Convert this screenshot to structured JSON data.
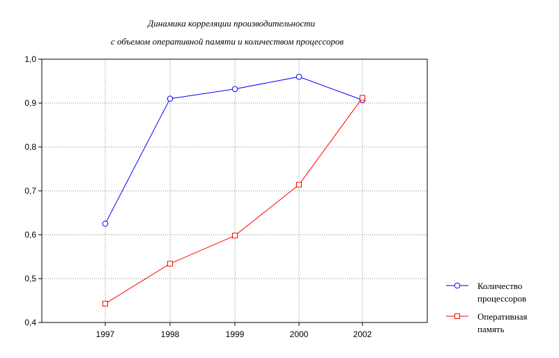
{
  "chart_data": {
    "type": "line",
    "title_lines": [
      "Динамика корреляции производительности",
      "с объемом оперативной памяти и количеством процессоров"
    ],
    "categories": [
      "1997",
      "1998",
      "1999",
      "2000",
      "2002"
    ],
    "y_ticks": [
      "0,4",
      "0,5",
      "0,6",
      "0,7",
      "0,8",
      "0,9",
      "1,0"
    ],
    "ylim": [
      0.4,
      1.0
    ],
    "grid": true,
    "legend_position": "bottom-right",
    "series": [
      {
        "name_lines": [
          "Количество",
          "процессоров"
        ],
        "values": [
          0.625,
          0.91,
          0.932,
          0.96,
          0.907
        ],
        "color": "#0000ff",
        "marker": "circle"
      },
      {
        "name_lines": [
          "Оперативная",
          "память"
        ],
        "values": [
          0.443,
          0.534,
          0.598,
          0.714,
          0.912
        ],
        "color": "#ff0000",
        "marker": "square"
      }
    ]
  }
}
